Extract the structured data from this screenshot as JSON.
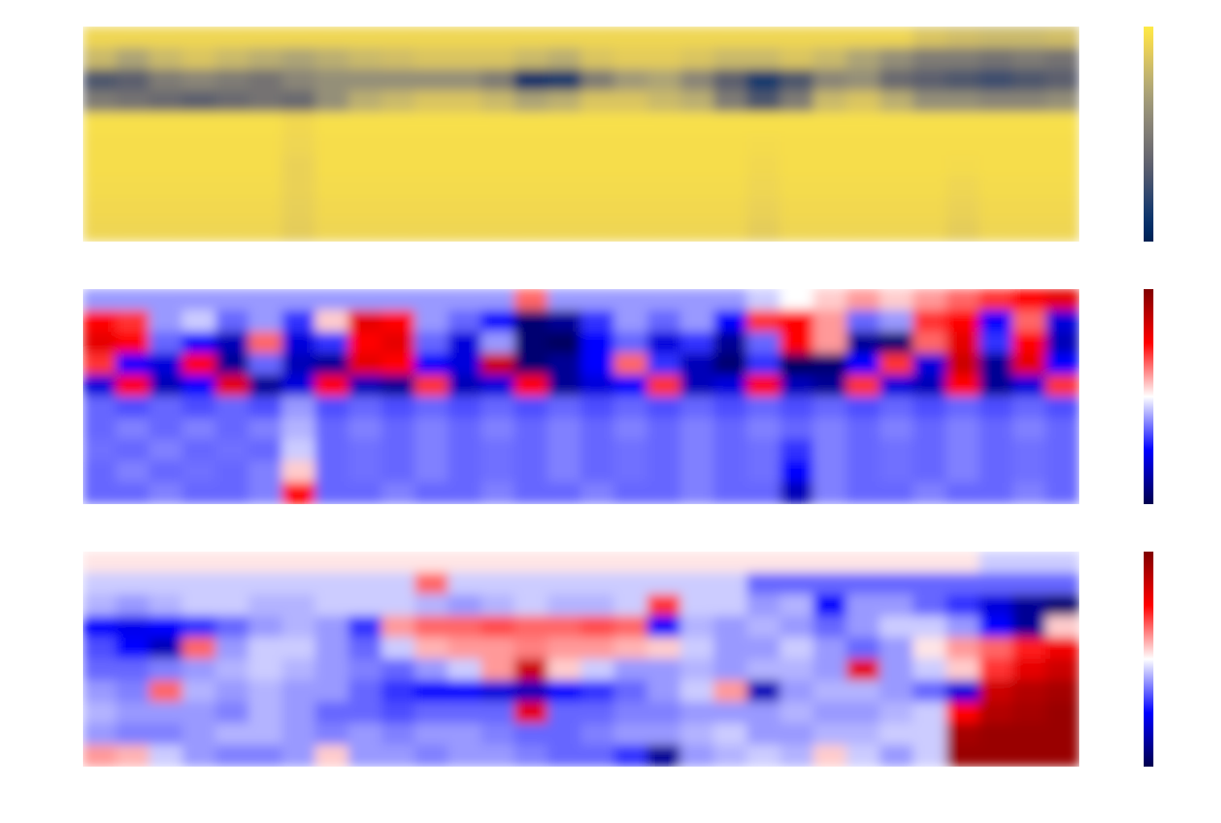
{
  "chart_data": [
    {
      "type": "heatmap",
      "color": "cividis",
      "tick_labels": false,
      "zlim": [
        0,
        1
      ],
      "cells": [
        [
          0.92,
          0.92,
          0.92,
          0.92,
          0.92,
          0.92,
          0.92,
          0.92,
          0.92,
          0.92,
          0.92,
          0.92,
          0.92,
          0.92,
          0.92,
          0.92,
          0.92,
          0.92,
          0.92,
          0.92,
          0.92,
          0.92,
          0.92,
          0.92,
          0.92,
          0.85,
          0.82,
          0.8,
          0.8,
          0.82
        ],
        [
          0.8,
          0.7,
          0.8,
          0.85,
          0.8,
          0.75,
          0.7,
          0.75,
          0.8,
          0.82,
          0.85,
          0.85,
          0.85,
          0.8,
          0.75,
          0.85,
          0.88,
          0.88,
          0.85,
          0.8,
          0.8,
          0.85,
          0.8,
          0.7,
          0.6,
          0.5,
          0.5,
          0.45,
          0.5,
          0.45
        ],
        [
          0.3,
          0.35,
          0.5,
          0.55,
          0.5,
          0.45,
          0.55,
          0.6,
          0.6,
          0.6,
          0.6,
          0.6,
          0.5,
          0.1,
          0.15,
          0.5,
          0.65,
          0.7,
          0.55,
          0.35,
          0.15,
          0.3,
          0.55,
          0.6,
          0.4,
          0.35,
          0.3,
          0.25,
          0.3,
          0.35
        ],
        [
          0.5,
          0.45,
          0.4,
          0.35,
          0.4,
          0.45,
          0.4,
          0.6,
          0.75,
          0.8,
          0.85,
          0.85,
          0.8,
          0.7,
          0.75,
          0.85,
          0.85,
          0.8,
          0.75,
          0.5,
          0.3,
          0.5,
          0.8,
          0.85,
          0.75,
          0.6,
          0.6,
          0.55,
          0.55,
          0.6
        ],
        [
          0.96,
          0.96,
          0.96,
          0.96,
          0.96,
          0.96,
          0.93,
          0.96,
          0.96,
          0.96,
          0.96,
          0.96,
          0.96,
          0.96,
          0.96,
          0.96,
          0.96,
          0.96,
          0.96,
          0.96,
          0.96,
          0.96,
          0.96,
          0.96,
          0.96,
          0.96,
          0.96,
          0.96,
          0.96,
          0.96
        ],
        [
          0.95,
          0.95,
          0.95,
          0.95,
          0.95,
          0.95,
          0.92,
          0.95,
          0.95,
          0.95,
          0.95,
          0.95,
          0.95,
          0.95,
          0.95,
          0.95,
          0.95,
          0.95,
          0.95,
          0.95,
          0.94,
          0.95,
          0.95,
          0.95,
          0.95,
          0.95,
          0.95,
          0.95,
          0.95,
          0.95
        ],
        [
          0.95,
          0.95,
          0.95,
          0.95,
          0.95,
          0.95,
          0.9,
          0.95,
          0.95,
          0.95,
          0.95,
          0.95,
          0.95,
          0.95,
          0.95,
          0.95,
          0.95,
          0.95,
          0.95,
          0.95,
          0.93,
          0.95,
          0.95,
          0.95,
          0.95,
          0.95,
          0.94,
          0.95,
          0.95,
          0.95
        ],
        [
          0.94,
          0.94,
          0.94,
          0.94,
          0.94,
          0.94,
          0.9,
          0.94,
          0.94,
          0.94,
          0.94,
          0.94,
          0.94,
          0.94,
          0.94,
          0.94,
          0.94,
          0.94,
          0.94,
          0.94,
          0.92,
          0.94,
          0.94,
          0.94,
          0.94,
          0.94,
          0.92,
          0.94,
          0.94,
          0.94
        ],
        [
          0.93,
          0.93,
          0.93,
          0.93,
          0.93,
          0.93,
          0.89,
          0.93,
          0.93,
          0.93,
          0.93,
          0.93,
          0.93,
          0.93,
          0.93,
          0.93,
          0.93,
          0.93,
          0.93,
          0.93,
          0.9,
          0.93,
          0.93,
          0.93,
          0.93,
          0.93,
          0.9,
          0.93,
          0.93,
          0.93
        ],
        [
          0.92,
          0.92,
          0.92,
          0.92,
          0.92,
          0.92,
          0.88,
          0.92,
          0.92,
          0.92,
          0.92,
          0.92,
          0.92,
          0.92,
          0.92,
          0.92,
          0.92,
          0.92,
          0.92,
          0.92,
          0.88,
          0.92,
          0.92,
          0.92,
          0.92,
          0.92,
          0.88,
          0.92,
          0.92,
          0.92
        ]
      ]
    },
    {
      "type": "heatmap",
      "color": "seismic",
      "tick_labels": false,
      "zlim": [
        -1,
        1
      ],
      "cells": [
        [
          -0.2,
          -0.2,
          -0.2,
          -0.2,
          -0.2,
          -0.2,
          -0.2,
          -0.2,
          -0.2,
          -0.2,
          -0.2,
          -0.2,
          -0.2,
          0.3,
          -0.2,
          -0.2,
          -0.2,
          -0.2,
          -0.2,
          -0.2,
          -0.1,
          0,
          0.1,
          0.2,
          0.1,
          0.2,
          0.3,
          0.4,
          0.5,
          0.6
        ],
        [
          0.5,
          0.4,
          -0.2,
          -0.1,
          -0.3,
          -0.2,
          -0.4,
          0.1,
          0.6,
          0.5,
          -0.2,
          -0.3,
          -0.5,
          -0.9,
          -0.8,
          -0.4,
          -0.2,
          -0.3,
          -0.2,
          -0.5,
          0.4,
          0.5,
          0.2,
          -0.3,
          -0.2,
          0.4,
          0.5,
          -0.5,
          0.3,
          -0.6
        ],
        [
          0.6,
          0.5,
          -0.3,
          -0.5,
          -0.7,
          0.3,
          -0.6,
          -0.4,
          0.5,
          0.6,
          -0.3,
          -0.6,
          -0.2,
          -0.9,
          -0.95,
          -0.5,
          -0.3,
          -0.6,
          -0.4,
          -0.8,
          -0.3,
          0.5,
          0.2,
          -0.8,
          -0.9,
          0.3,
          0.6,
          -0.4,
          0.5,
          -0.7
        ],
        [
          0.4,
          -0.5,
          -0.6,
          0.5,
          -0.8,
          -0.3,
          -0.7,
          -0.8,
          0.6,
          0.5,
          -0.5,
          -0.6,
          0.7,
          -0.9,
          -0.8,
          -0.5,
          0.3,
          -0.4,
          -0.7,
          -0.9,
          -0.4,
          -0.95,
          -0.9,
          -0.5,
          0.4,
          -0.6,
          0.7,
          -0.8,
          0.6,
          -0.5
        ],
        [
          -0.6,
          0.5,
          -0.7,
          -0.5,
          0.6,
          -0.8,
          -0.6,
          0.5,
          -0.7,
          -0.8,
          0.4,
          -0.7,
          -0.6,
          0.5,
          -0.8,
          -0.6,
          -0.5,
          0.4,
          -0.7,
          -0.6,
          0.5,
          -0.7,
          -0.8,
          0.4,
          -0.6,
          -0.7,
          0.5,
          -0.8,
          -0.6,
          0.4
        ],
        [
          -0.3,
          -0.35,
          -0.3,
          -0.35,
          -0.3,
          -0.35,
          -0.2,
          -0.35,
          -0.3,
          -0.35,
          -0.3,
          -0.35,
          -0.3,
          -0.35,
          -0.3,
          -0.35,
          -0.3,
          -0.35,
          -0.3,
          -0.35,
          -0.3,
          -0.35,
          -0.3,
          -0.35,
          -0.3,
          -0.35,
          -0.3,
          -0.35,
          -0.3,
          -0.35
        ],
        [
          -0.3,
          -0.25,
          -0.3,
          -0.25,
          -0.3,
          -0.25,
          -0.15,
          -0.3,
          -0.25,
          -0.3,
          -0.25,
          -0.3,
          -0.25,
          -0.3,
          -0.25,
          -0.3,
          -0.25,
          -0.3,
          -0.25,
          -0.3,
          -0.25,
          -0.3,
          -0.25,
          -0.3,
          -0.25,
          -0.3,
          -0.25,
          -0.3,
          -0.25,
          -0.3
        ],
        [
          -0.28,
          -0.3,
          -0.25,
          -0.3,
          -0.28,
          -0.3,
          -0.1,
          -0.3,
          -0.28,
          -0.3,
          -0.25,
          -0.3,
          -0.28,
          -0.3,
          -0.25,
          -0.3,
          -0.28,
          -0.3,
          -0.25,
          -0.3,
          -0.28,
          -0.4,
          -0.25,
          -0.3,
          -0.28,
          -0.3,
          -0.25,
          -0.3,
          -0.28,
          -0.3
        ],
        [
          -0.3,
          -0.25,
          -0.3,
          -0.28,
          -0.3,
          -0.25,
          0.1,
          -0.3,
          -0.28,
          -0.3,
          -0.25,
          -0.3,
          -0.28,
          -0.3,
          -0.25,
          -0.3,
          -0.28,
          -0.3,
          -0.25,
          -0.3,
          -0.28,
          -0.5,
          -0.25,
          -0.3,
          -0.28,
          -0.3,
          -0.25,
          -0.3,
          -0.28,
          -0.3
        ],
        [
          -0.3,
          -0.3,
          -0.25,
          -0.3,
          -0.3,
          -0.25,
          0.5,
          -0.3,
          -0.3,
          -0.25,
          -0.3,
          -0.3,
          -0.25,
          -0.3,
          -0.3,
          -0.25,
          -0.3,
          -0.3,
          -0.25,
          -0.3,
          -0.3,
          -0.7,
          -0.25,
          -0.3,
          -0.3,
          -0.25,
          -0.3,
          -0.3,
          -0.25,
          -0.3
        ]
      ]
    },
    {
      "type": "heatmap",
      "color": "seismic",
      "tick_labels": false,
      "zlim": [
        -1,
        1
      ],
      "cells": [
        [
          0.05,
          0.05,
          0.05,
          0.05,
          0.05,
          0.05,
          0.05,
          0.05,
          0.05,
          0.05,
          0.05,
          0.05,
          0.05,
          0.05,
          0.05,
          0.05,
          0.05,
          0.05,
          0.05,
          0.05,
          0.05,
          0.05,
          0.05,
          0.05,
          0.05,
          0.05,
          0.05,
          -0.1,
          -0.1,
          -0.1
        ],
        [
          -0.1,
          -0.1,
          -0.1,
          -0.1,
          -0.1,
          -0.1,
          -0.1,
          -0.1,
          -0.1,
          -0.1,
          0.3,
          -0.1,
          -0.1,
          -0.1,
          -0.1,
          -0.1,
          -0.1,
          -0.1,
          -0.1,
          -0.1,
          -0.3,
          -0.3,
          -0.3,
          -0.3,
          -0.3,
          -0.3,
          -0.3,
          -0.3,
          -0.3,
          -0.3
        ],
        [
          -0.15,
          -0.2,
          -0.15,
          -0.1,
          -0.1,
          -0.15,
          -0.15,
          -0.1,
          -0.1,
          -0.1,
          -0.15,
          -0.2,
          -0.15,
          -0.1,
          -0.15,
          -0.15,
          -0.1,
          0.4,
          -0.1,
          -0.1,
          -0.2,
          -0.15,
          -0.5,
          -0.2,
          -0.2,
          -0.3,
          -0.4,
          -0.6,
          -0.8,
          -0.9
        ],
        [
          -0.5,
          -0.55,
          -0.5,
          -0.4,
          -0.3,
          -0.2,
          -0.15,
          -0.2,
          -0.4,
          0.2,
          0.3,
          0.3,
          0.35,
          0.3,
          0.3,
          0.35,
          0.3,
          -0.5,
          -0.15,
          -0.2,
          -0.15,
          -0.2,
          -0.3,
          -0.2,
          -0.1,
          -0.1,
          -0.2,
          -0.5,
          -0.8,
          0.1
        ],
        [
          -0.35,
          -0.5,
          -0.7,
          0.3,
          -0.2,
          -0.1,
          -0.1,
          -0.2,
          -0.3,
          -0.1,
          0.15,
          0.2,
          0.2,
          0.25,
          0.2,
          0.2,
          0.15,
          0.1,
          -0.1,
          -0.2,
          -0.2,
          -0.1,
          -0.2,
          -0.3,
          -0.2,
          0.05,
          0.2,
          0.3,
          0.45,
          0.55
        ],
        [
          -0.3,
          -0.3,
          -0.25,
          -0.2,
          -0.15,
          -0.1,
          -0.15,
          -0.2,
          -0.25,
          -0.3,
          -0.2,
          -0.1,
          0.2,
          0.7,
          0.1,
          -0.1,
          -0.2,
          -0.2,
          -0.15,
          -0.2,
          -0.15,
          -0.15,
          -0.2,
          0.6,
          -0.2,
          -0.1,
          0.1,
          0.4,
          0.6,
          0.7
        ],
        [
          -0.2,
          -0.25,
          0.3,
          -0.15,
          -0.2,
          -0.15,
          -0.2,
          -0.2,
          -0.3,
          -0.4,
          -0.5,
          -0.5,
          -0.6,
          -0.7,
          -0.5,
          -0.4,
          -0.3,
          -0.2,
          -0.1,
          0.2,
          -0.7,
          -0.2,
          -0.15,
          -0.15,
          -0.2,
          -0.3,
          -0.6,
          0.7,
          0.8,
          0.85
        ],
        [
          -0.15,
          -0.2,
          -0.2,
          -0.2,
          -0.25,
          -0.15,
          -0.2,
          -0.3,
          -0.3,
          -0.35,
          -0.3,
          -0.3,
          -0.3,
          0.6,
          -0.3,
          -0.3,
          -0.25,
          -0.25,
          -0.2,
          -0.2,
          -0.2,
          -0.15,
          -0.2,
          -0.2,
          -0.15,
          -0.1,
          0.5,
          0.8,
          0.85,
          0.9
        ],
        [
          -0.2,
          -0.25,
          -0.25,
          -0.2,
          -0.15,
          -0.15,
          -0.2,
          -0.25,
          -0.2,
          -0.25,
          -0.2,
          -0.2,
          -0.25,
          -0.3,
          -0.3,
          -0.25,
          -0.2,
          -0.2,
          -0.15,
          -0.1,
          -0.2,
          -0.2,
          -0.15,
          -0.15,
          -0.1,
          -0.1,
          0.85,
          0.9,
          0.9,
          0.9
        ],
        [
          0.2,
          0.15,
          -0.1,
          -0.2,
          -0.25,
          -0.25,
          -0.2,
          0.1,
          -0.2,
          -0.2,
          -0.25,
          -0.2,
          -0.2,
          -0.25,
          -0.3,
          -0.3,
          -0.4,
          -0.8,
          -0.2,
          -0.15,
          -0.1,
          -0.15,
          0.1,
          -0.1,
          -0.2,
          -0.1,
          0.9,
          0.9,
          0.9,
          0.9
        ]
      ]
    }
  ]
}
